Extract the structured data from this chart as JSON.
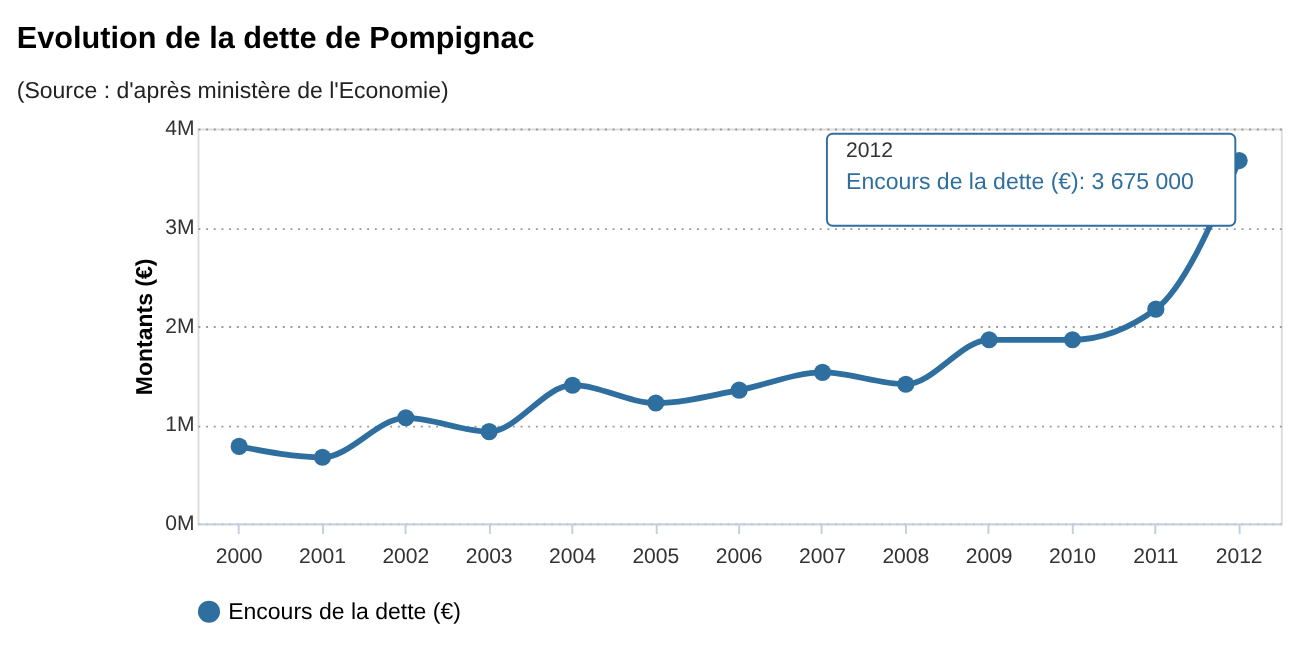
{
  "chart_data": {
    "type": "line",
    "title": "Evolution de la dette de Pompignac",
    "subtitle": "(Source : d'après ministère de l'Economie)",
    "ylabel": "Montants (€)",
    "categories": [
      "2000",
      "2001",
      "2002",
      "2003",
      "2004",
      "2005",
      "2006",
      "2007",
      "2008",
      "2009",
      "2010",
      "2011",
      "2012"
    ],
    "series": [
      {
        "name": "Encours de la dette (€)",
        "color": "#2f6f9f",
        "values": [
          780000,
          670000,
          1070000,
          930000,
          1400000,
          1220000,
          1350000,
          1530000,
          1410000,
          1860000,
          1860000,
          2170000,
          3675000
        ]
      }
    ],
    "ylim": [
      0,
      4000000
    ],
    "yticks": [
      {
        "value": 0,
        "label": "0M"
      },
      {
        "value": 1000000,
        "label": "1M"
      },
      {
        "value": 2000000,
        "label": "2M"
      },
      {
        "value": 3000000,
        "label": "3M"
      },
      {
        "value": 4000000,
        "label": "4M"
      }
    ],
    "grid": "y",
    "legend": "bottom",
    "marker": "circle",
    "line_style": "solid",
    "annotations": [
      "2012",
      {
        "text": "Encours de la dette (€): 3 675 000",
        "x": "2012",
        "y": 3675000
      }
    ]
  }
}
